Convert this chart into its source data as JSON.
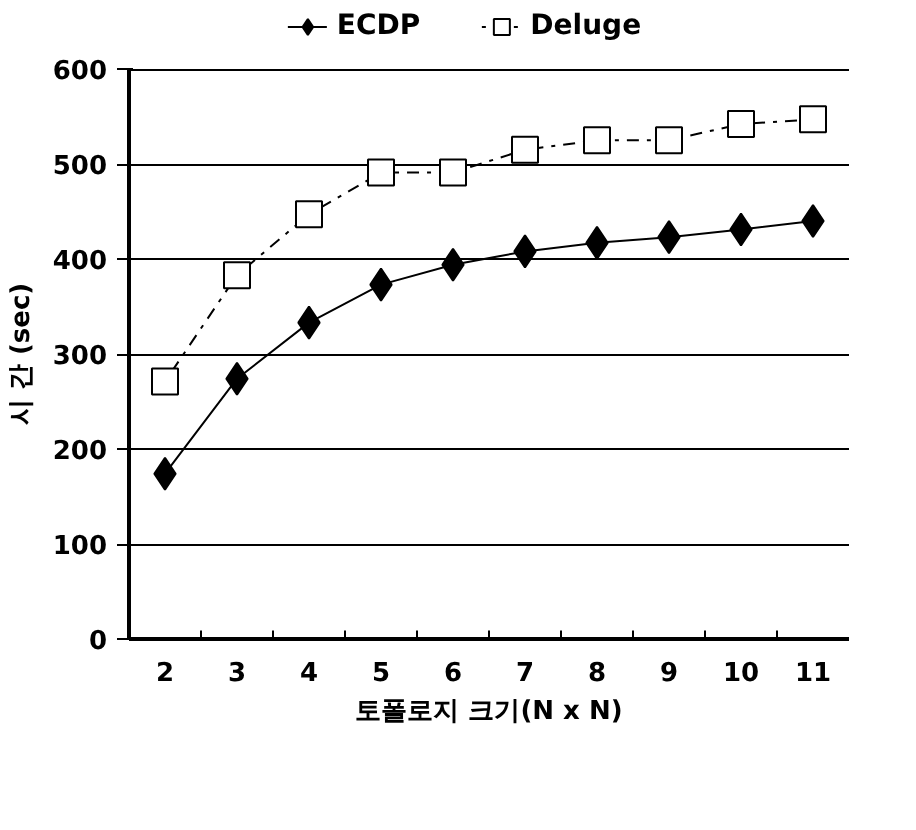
{
  "chart_data": {
    "type": "line",
    "xlabel": "토폴로지 크기(N x N)",
    "ylabel": "시 간 (sec)",
    "categories": [
      "2",
      "3",
      "4",
      "5",
      "6",
      "7",
      "8",
      "9",
      "10",
      "11"
    ],
    "series": [
      {
        "name": "ECDP",
        "color": "#000000",
        "marker": "diamond",
        "line_style": "solid",
        "values": [
          174,
          274,
          333,
          373,
          394,
          408,
          417,
          423,
          431,
          440
        ]
      },
      {
        "name": "Deluge",
        "color": "#000000",
        "marker": "square",
        "line_style": "dotted",
        "values": [
          271,
          383,
          447,
          491,
          491,
          515,
          525,
          525,
          542,
          547
        ]
      }
    ],
    "ylim": [
      0,
      600
    ],
    "yticks": [
      0,
      100,
      200,
      300,
      400,
      500,
      600
    ],
    "grid": "y",
    "legend": "top"
  }
}
